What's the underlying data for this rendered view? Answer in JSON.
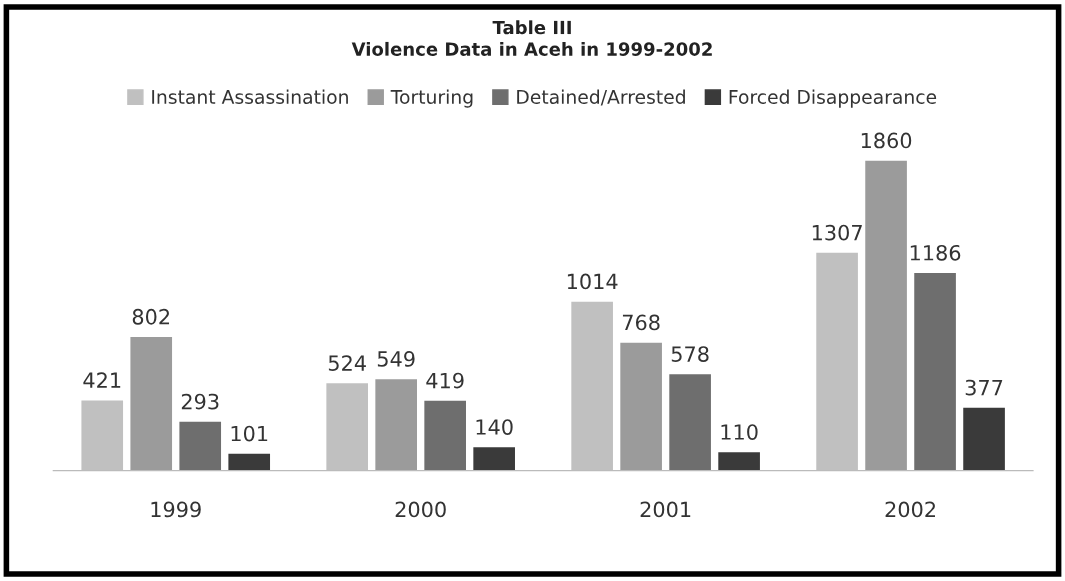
{
  "chart_data": {
    "type": "bar",
    "title": "Table III\nViolence Data in Aceh in 1999-2002",
    "categories": [
      "1999",
      "2000",
      "2001",
      "2002"
    ],
    "series": [
      {
        "name": "Instant Assassination",
        "color": "#c0c0c0",
        "values": [
          421,
          524,
          1014,
          1307
        ]
      },
      {
        "name": "Torturing",
        "color": "#9b9b9b",
        "values": [
          802,
          549,
          768,
          1860
        ]
      },
      {
        "name": "Detained/Arrested",
        "color": "#6e6e6e",
        "values": [
          293,
          419,
          578,
          1186
        ]
      },
      {
        "name": "Forced Disappearance",
        "color": "#3a3a3a",
        "values": [
          101,
          140,
          110,
          377
        ]
      }
    ],
    "data_labels": true,
    "legend": "top",
    "grid": false
  }
}
